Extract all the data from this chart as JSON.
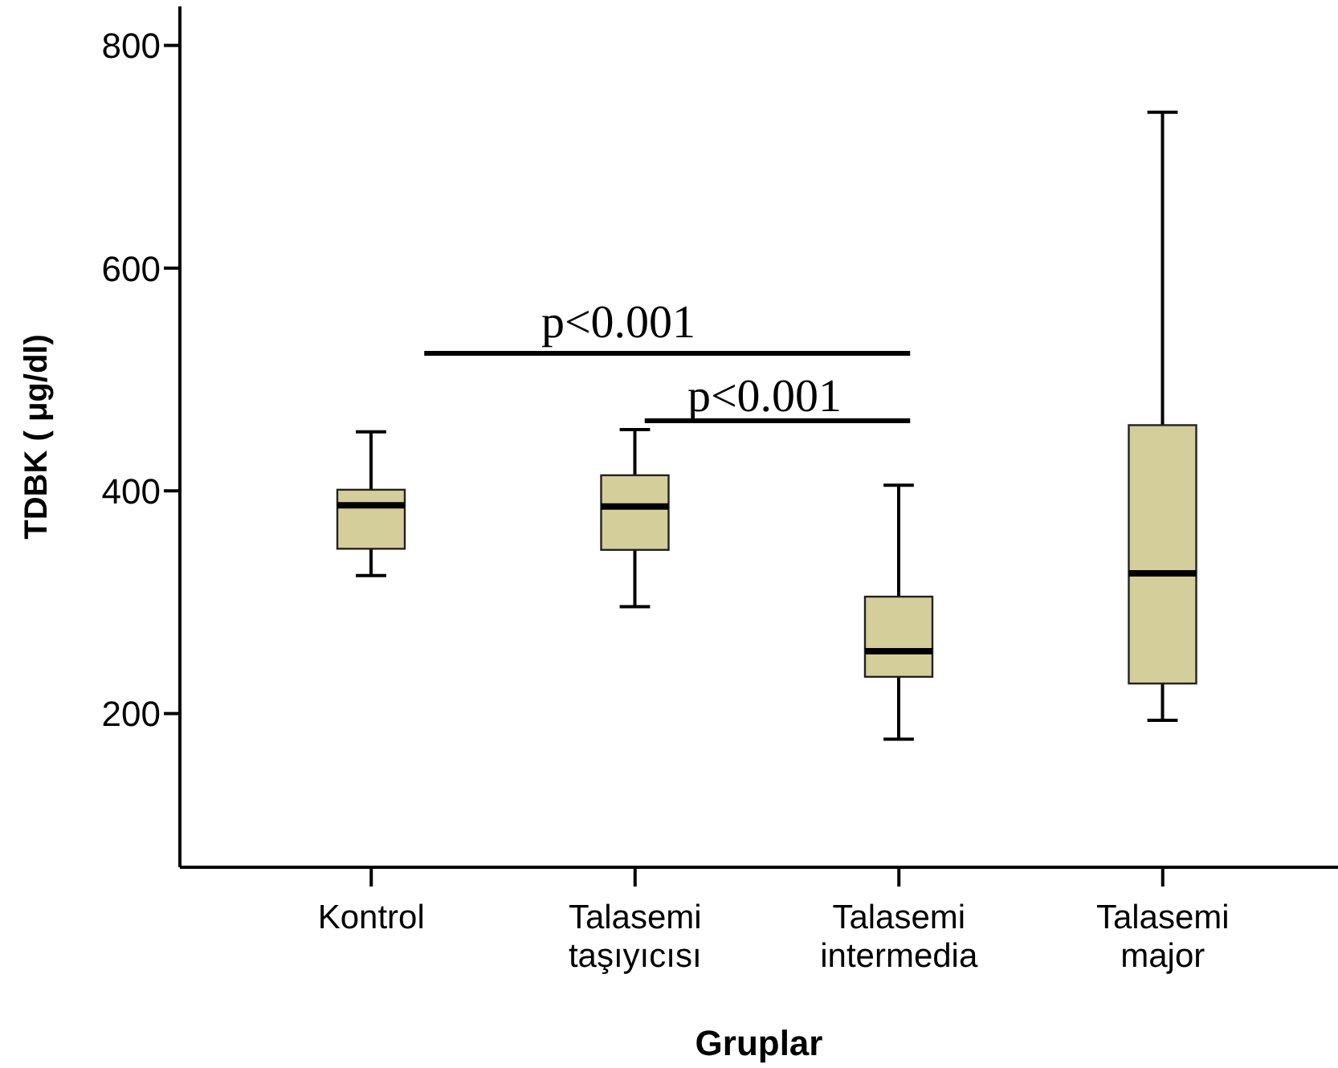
{
  "chart_data": {
    "type": "box",
    "xlabel": "Gruplar",
    "ylabel": "TDBK ( μg/dl)",
    "categories": [
      "Kontrol",
      "Talasemi\ntaşıyıcısı",
      "Talasemi\nintermedia",
      "Talasemi\nmajor"
    ],
    "color": "#d4cf9a",
    "boxes": [
      {
        "low": 324,
        "q1": 348,
        "median": 387,
        "q3": 401,
        "high": 453
      },
      {
        "low": 296,
        "q1": 347,
        "median": 386,
        "q3": 414,
        "high": 455
      },
      {
        "low": 177,
        "q1": 233,
        "median": 256,
        "q3": 305,
        "high": 405
      },
      {
        "low": 194,
        "q1": 227,
        "median": 326,
        "q3": 459,
        "high": 740
      }
    ],
    "ylim": [
      62,
      835
    ],
    "yticks": [
      200,
      400,
      600,
      800
    ],
    "annotations": [
      "p<0.001",
      "p<0.001"
    ]
  }
}
